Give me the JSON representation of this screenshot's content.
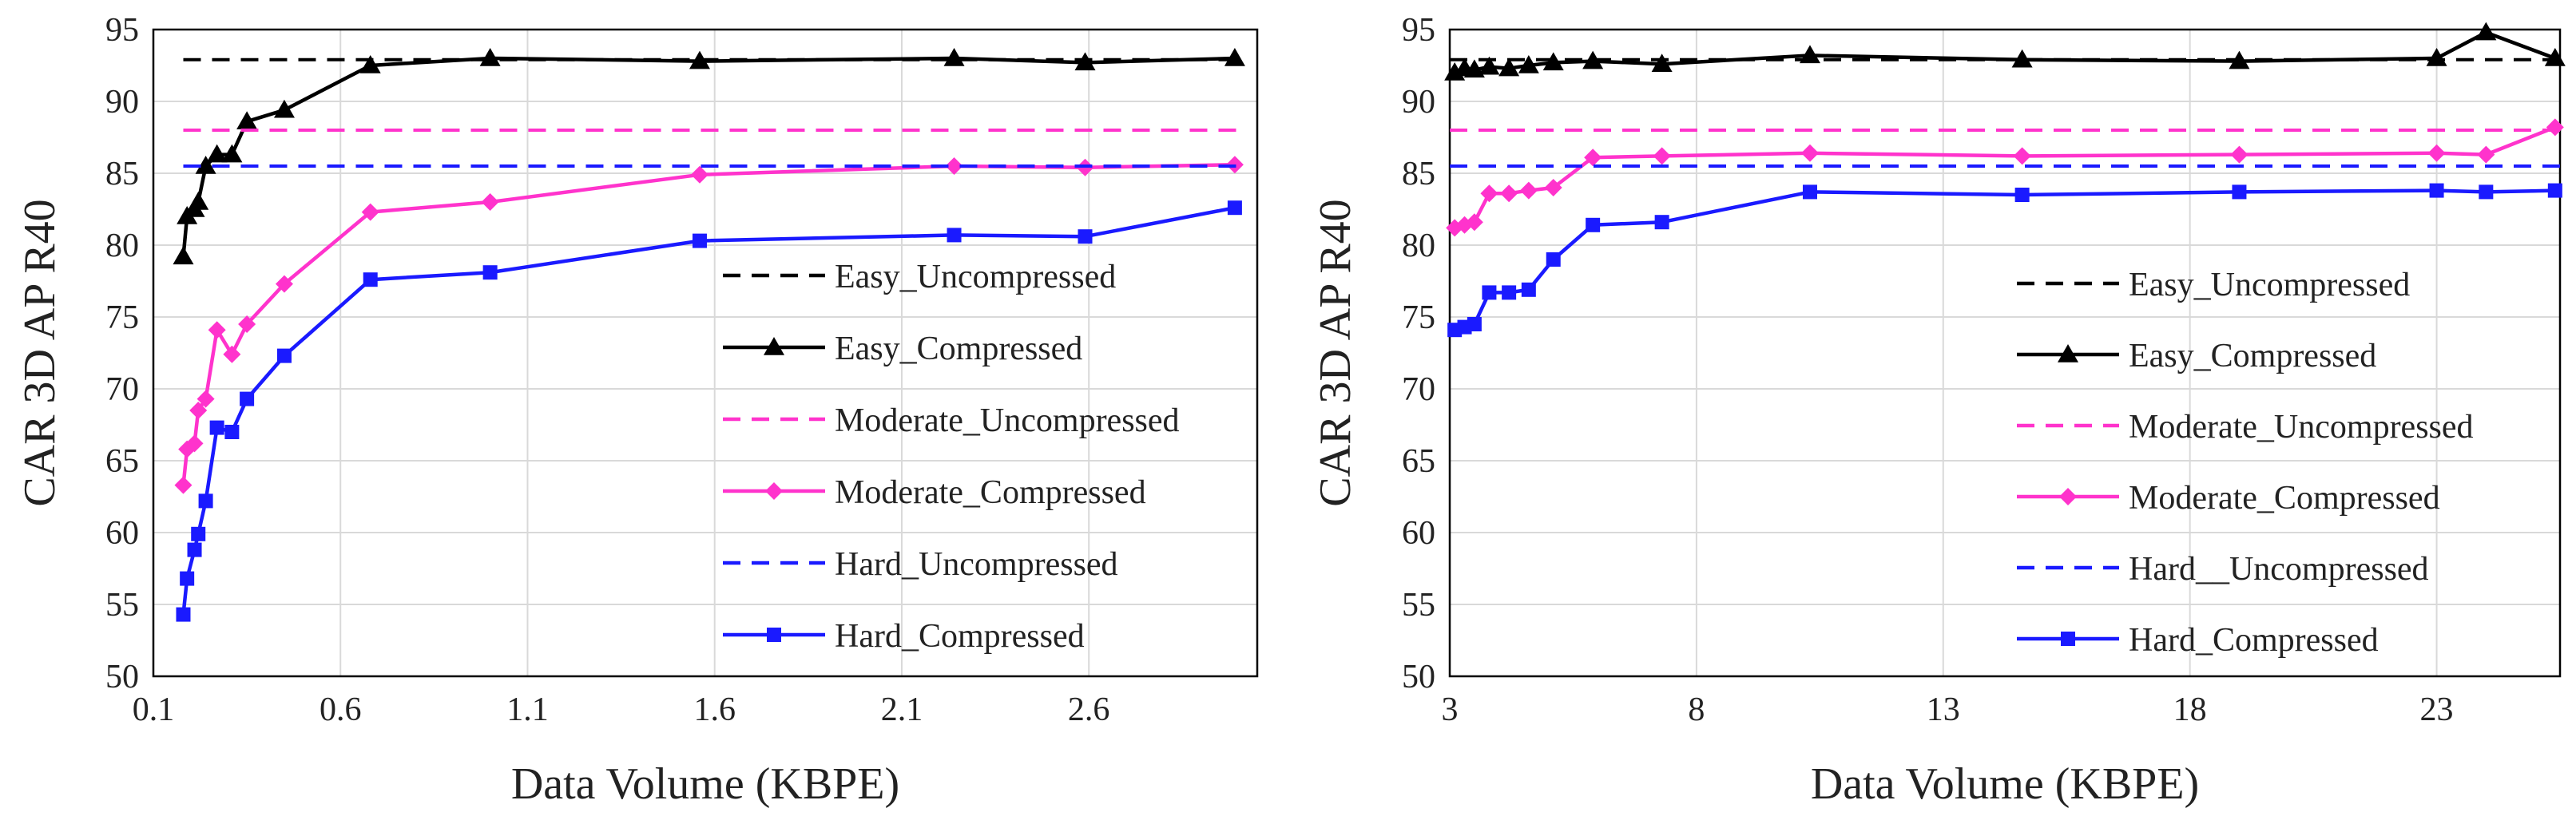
{
  "chart_data": [
    {
      "type": "line",
      "xlabel": "Data Volume (KBPE)",
      "ylabel": "CAR 3D AP R40",
      "xlim": [
        0.1,
        3.05
      ],
      "ylim": [
        50,
        95
      ],
      "xticks": [
        0.1,
        0.6,
        1.1,
        1.6,
        2.1,
        2.6
      ],
      "xtick_labels": [
        "0.1",
        "0.6",
        "1.1",
        "1.6",
        "2.1",
        "2.6"
      ],
      "yticks": [
        50,
        55,
        60,
        65,
        70,
        75,
        80,
        85,
        90,
        95
      ],
      "ytick_labels": [
        "50",
        "55",
        "60",
        "65",
        "70",
        "75",
        "80",
        "85",
        "90",
        "95"
      ],
      "grid": true,
      "legend_position": "center-right",
      "series": [
        {
          "name": "Easy_Uncompressed",
          "color": "#000000",
          "style": "dashed",
          "marker": "none",
          "x": [
            0.18,
            3.0
          ],
          "y": [
            92.9,
            92.9
          ]
        },
        {
          "name": "Easy_Compressed",
          "color": "#000000",
          "style": "solid",
          "marker": "triangle",
          "x": [
            0.18,
            0.19,
            0.21,
            0.22,
            0.24,
            0.27,
            0.31,
            0.35,
            0.45,
            0.68,
            1.0,
            1.56,
            2.24,
            2.59,
            2.99
          ],
          "y": [
            79.2,
            82.0,
            82.5,
            83.0,
            85.5,
            86.3,
            86.3,
            88.6,
            89.4,
            92.5,
            93.0,
            92.8,
            93.0,
            92.7,
            93.0
          ]
        },
        {
          "name": "Moderate_Uncompressed",
          "color": "#ff33cc",
          "style": "dashed",
          "marker": "none",
          "x": [
            0.18,
            3.0
          ],
          "y": [
            88.0,
            88.0
          ]
        },
        {
          "name": "Moderate_Compressed",
          "color": "#ff33cc",
          "style": "solid",
          "marker": "diamond",
          "x": [
            0.18,
            0.19,
            0.21,
            0.22,
            0.24,
            0.27,
            0.31,
            0.35,
            0.45,
            0.68,
            1.0,
            1.56,
            2.24,
            2.59,
            2.99
          ],
          "y": [
            63.3,
            65.8,
            66.2,
            68.5,
            69.3,
            74.1,
            72.4,
            74.5,
            77.3,
            82.3,
            83.0,
            84.9,
            85.5,
            85.4,
            85.6
          ]
        },
        {
          "name": "Hard_Uncompressed",
          "color": "#1a1aff",
          "style": "dashed",
          "marker": "none",
          "x": [
            0.18,
            3.0
          ],
          "y": [
            85.5,
            85.5
          ]
        },
        {
          "name": "Hard_Compressed",
          "color": "#1a1aff",
          "style": "solid",
          "marker": "square",
          "x": [
            0.18,
            0.19,
            0.21,
            0.22,
            0.24,
            0.27,
            0.31,
            0.35,
            0.45,
            0.68,
            1.0,
            1.56,
            2.24,
            2.59,
            2.99
          ],
          "y": [
            54.3,
            56.8,
            58.8,
            59.9,
            62.2,
            67.3,
            67.0,
            69.3,
            72.3,
            77.6,
            78.1,
            80.3,
            80.7,
            80.6,
            82.6
          ]
        }
      ]
    },
    {
      "type": "line",
      "xlabel": "Data Volume (KBPE)",
      "ylabel": "CAR 3D AP R40",
      "xlim": [
        3,
        25.5
      ],
      "ylim": [
        50,
        95
      ],
      "xticks": [
        3,
        8,
        13,
        18,
        23
      ],
      "xtick_labels": [
        "3",
        "8",
        "13",
        "18",
        "23"
      ],
      "yticks": [
        50,
        55,
        60,
        65,
        70,
        75,
        80,
        85,
        90,
        95
      ],
      "ytick_labels": [
        "50",
        "55",
        "60",
        "65",
        "70",
        "75",
        "80",
        "85",
        "90",
        "95"
      ],
      "grid": true,
      "legend_position": "center-right",
      "series": [
        {
          "name": "Easy_Uncompressed",
          "color": "#000000",
          "style": "dashed",
          "marker": "none",
          "x": [
            3.0,
            25.5
          ],
          "y": [
            92.9,
            92.9
          ]
        },
        {
          "name": "Easy_Compressed",
          "color": "#000000",
          "style": "solid",
          "marker": "triangle",
          "x": [
            3.1,
            3.3,
            3.5,
            3.8,
            4.2,
            4.6,
            5.1,
            5.9,
            7.3,
            10.3,
            14.6,
            19.0,
            23.0,
            24.0,
            25.4
          ],
          "y": [
            92.0,
            92.3,
            92.2,
            92.4,
            92.3,
            92.5,
            92.7,
            92.8,
            92.6,
            93.2,
            92.9,
            92.8,
            93.0,
            94.8,
            93.0
          ]
        },
        {
          "name": "Moderate_Uncompressed",
          "color": "#ff33cc",
          "style": "dashed",
          "marker": "none",
          "x": [
            3.0,
            25.5
          ],
          "y": [
            88.0,
            88.0
          ]
        },
        {
          "name": "Moderate_Compressed",
          "color": "#ff33cc",
          "style": "solid",
          "marker": "diamond",
          "x": [
            3.1,
            3.3,
            3.5,
            3.8,
            4.2,
            4.6,
            5.1,
            5.9,
            7.3,
            10.3,
            14.6,
            19.0,
            23.0,
            24.0,
            25.4
          ],
          "y": [
            81.2,
            81.4,
            81.6,
            83.6,
            83.6,
            83.8,
            84.0,
            86.1,
            86.2,
            86.4,
            86.2,
            86.3,
            86.4,
            86.3,
            88.2
          ]
        },
        {
          "name": "Hard__Uncompressed",
          "color": "#1a1aff",
          "style": "dashed",
          "marker": "none",
          "x": [
            3.0,
            25.5
          ],
          "y": [
            85.5,
            85.5
          ]
        },
        {
          "name": "Hard_Compressed",
          "color": "#1a1aff",
          "style": "solid",
          "marker": "square",
          "x": [
            3.1,
            3.3,
            3.5,
            3.8,
            4.2,
            4.6,
            5.1,
            5.9,
            7.3,
            10.3,
            14.6,
            19.0,
            23.0,
            24.0,
            25.4
          ],
          "y": [
            74.1,
            74.3,
            74.5,
            76.7,
            76.7,
            76.9,
            79.0,
            81.4,
            81.6,
            83.7,
            83.5,
            83.7,
            83.8,
            83.7,
            83.8
          ]
        }
      ]
    }
  ]
}
